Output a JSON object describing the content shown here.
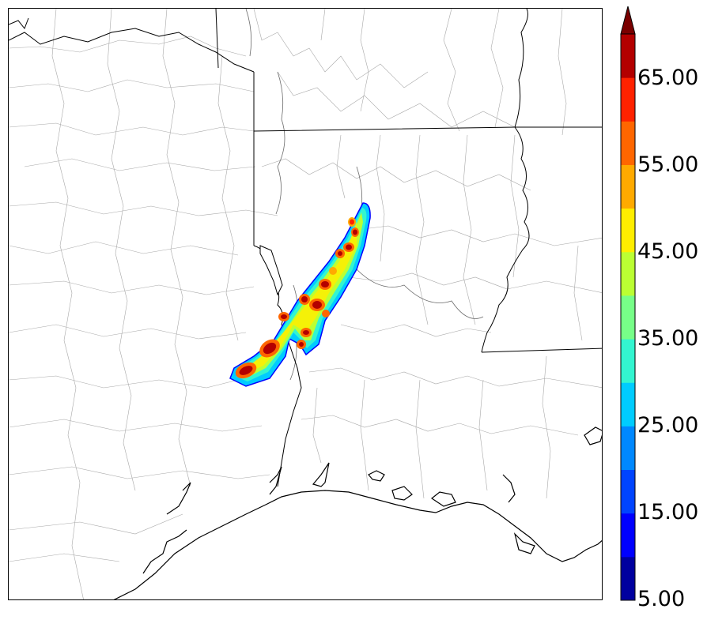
{
  "map": {
    "region": "Gulf Coast (Texas / Louisiana / Arkansas / Mississippi)",
    "features": [
      "state-borders",
      "county-borders",
      "coastline",
      "rivers"
    ]
  },
  "colorbar": {
    "extend": "max",
    "levels": [
      5,
      10,
      15,
      20,
      25,
      30,
      35,
      40,
      45,
      50,
      55,
      60,
      65,
      70
    ],
    "colors": [
      "#00009f",
      "#0000ff",
      "#0044ff",
      "#0088ff",
      "#00ccff",
      "#33f5d0",
      "#77ff88",
      "#bbff33",
      "#ffee00",
      "#ffaa00",
      "#ff6600",
      "#ff2200",
      "#b30000"
    ],
    "extend_color": "#7a0000",
    "tick_labels": [
      "65.00",
      "55.00",
      "45.00",
      "35.00",
      "25.00",
      "15.00",
      "5.00"
    ]
  }
}
